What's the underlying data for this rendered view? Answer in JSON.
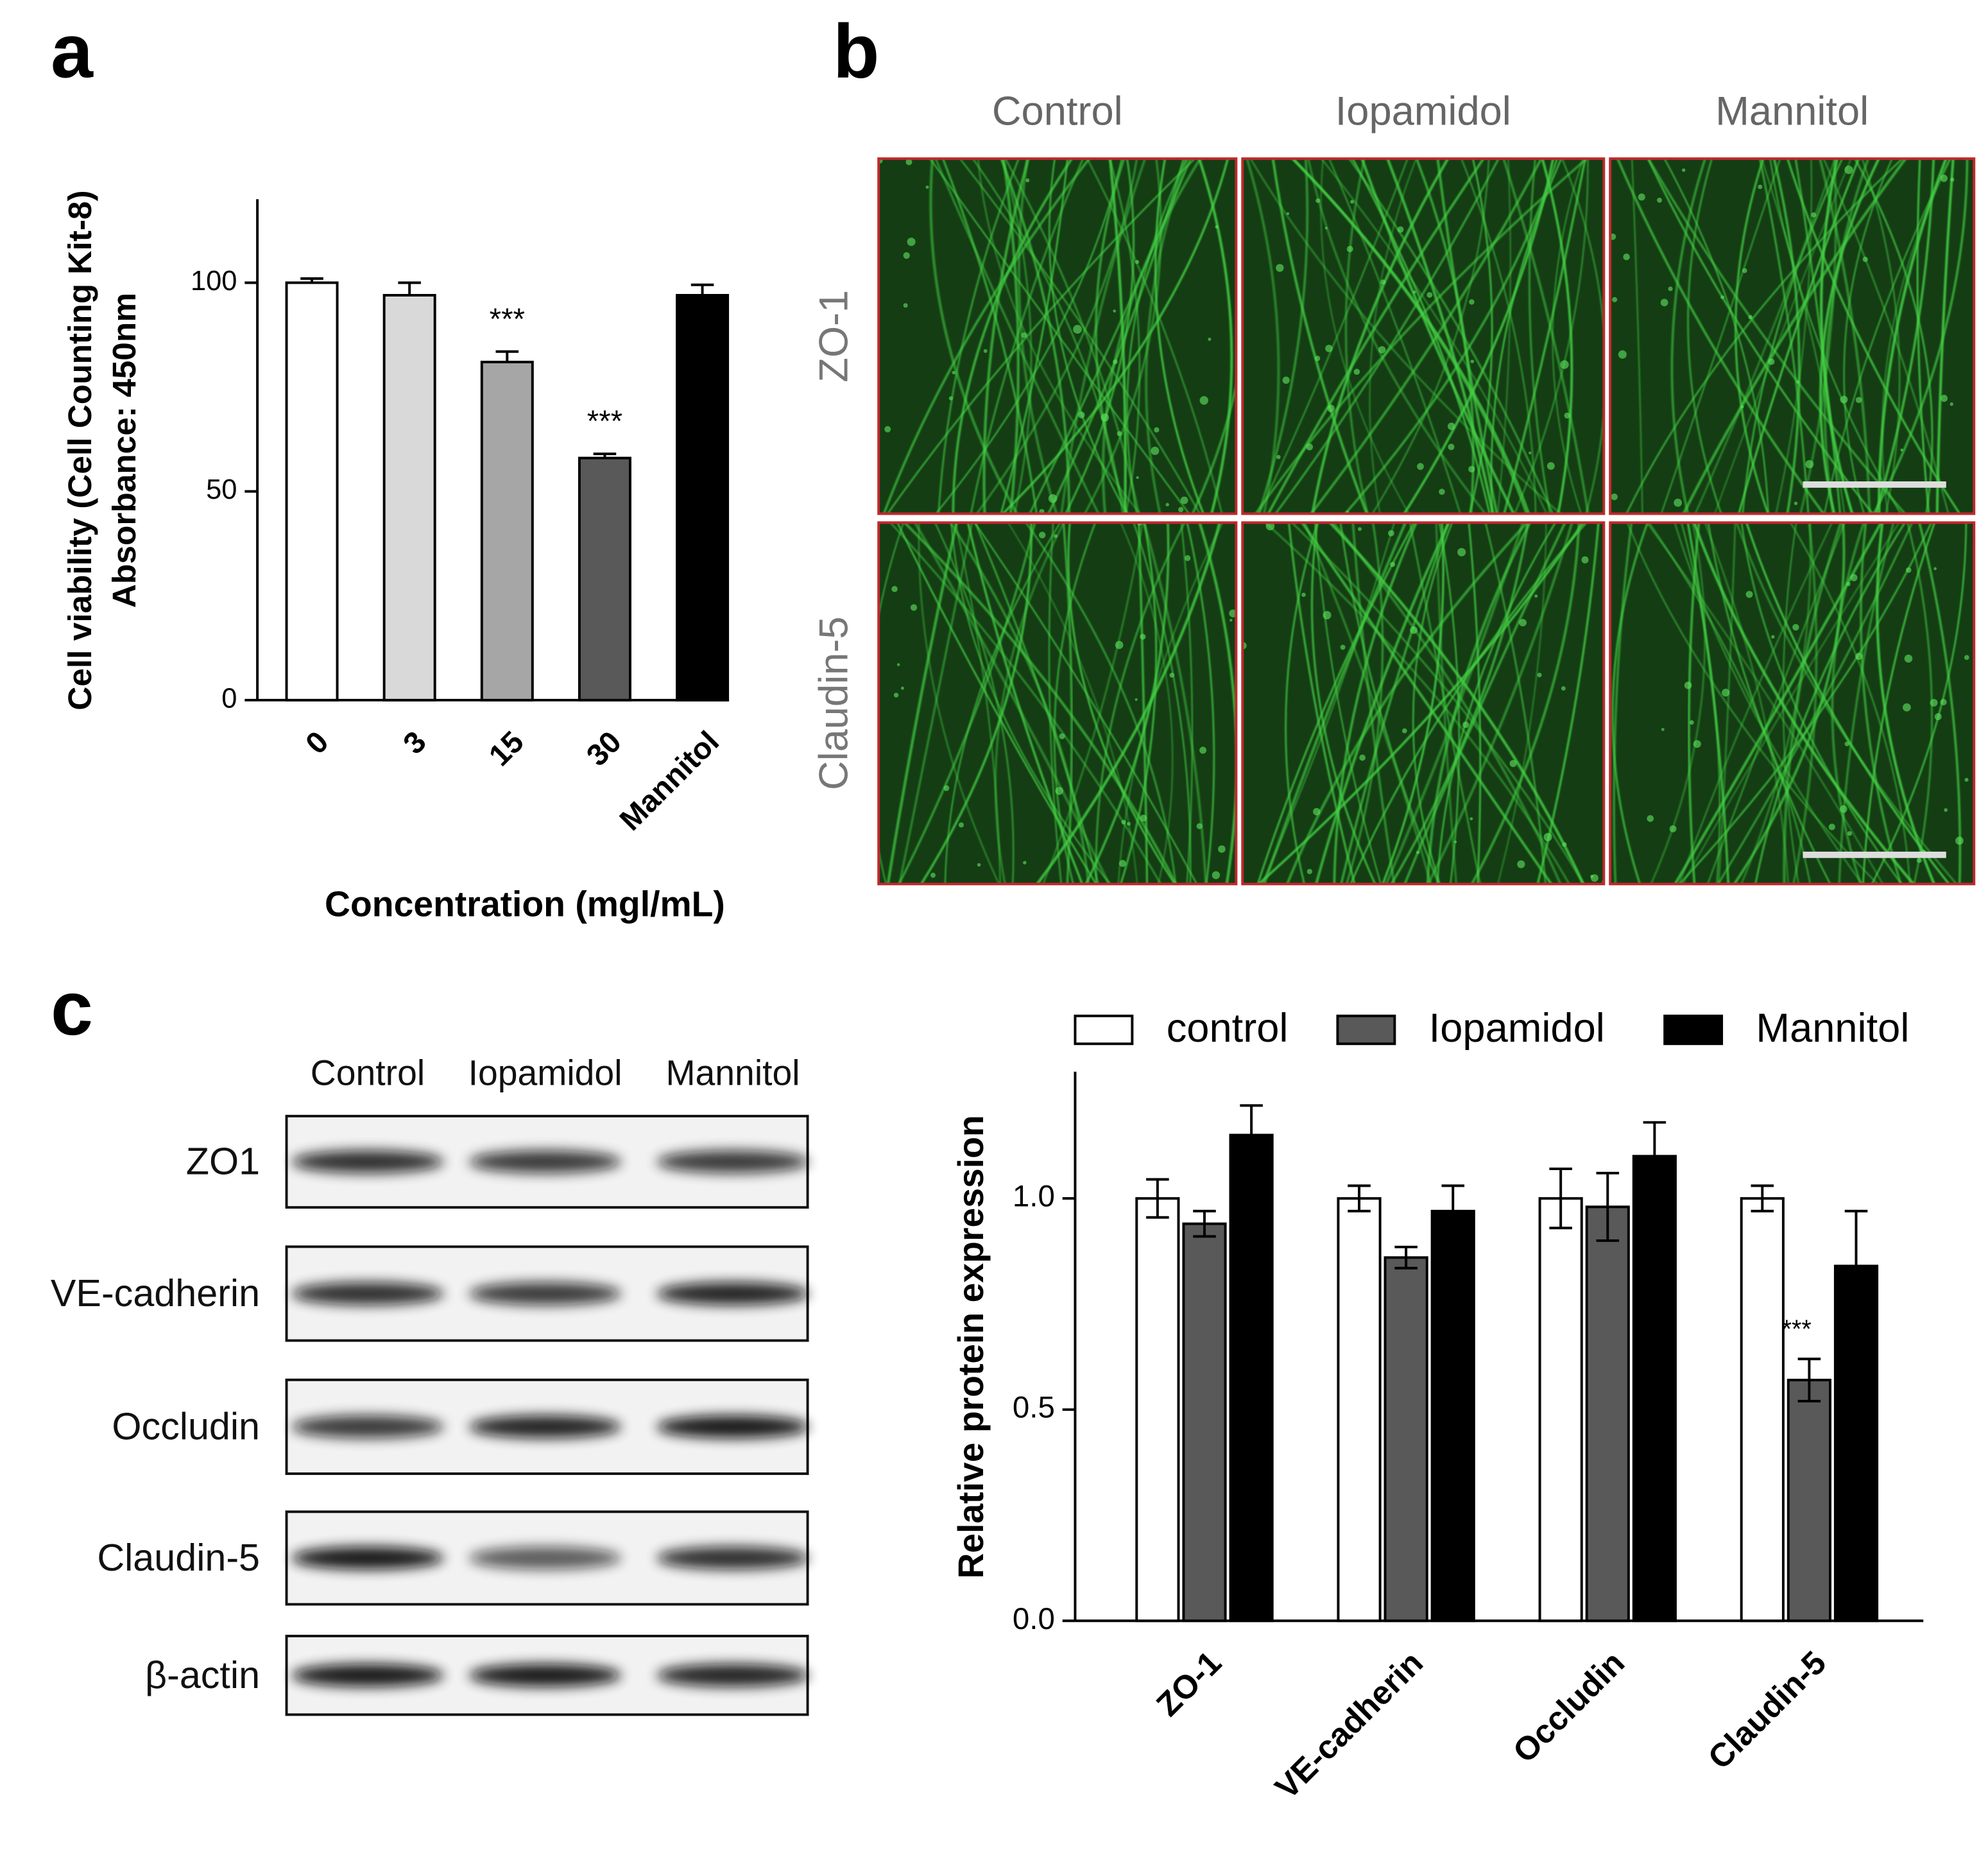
{
  "panel_labels": [
    "a",
    "b",
    "c"
  ],
  "chart_data": [
    {
      "type": "bar",
      "ylabel": [
        "Cell viability (Cell Counting Kit-8)",
        "Absorbance: 450nm"
      ],
      "xlabel": "Concentration (mgl/mL)",
      "categories": [
        "0",
        "3",
        "15",
        "30",
        "Mannitol"
      ],
      "values": [
        100,
        97,
        81,
        58,
        97
      ],
      "errors": [
        1,
        3,
        2.5,
        1,
        2.5
      ],
      "error_bars": "upper",
      "colors": [
        "#ffffff",
        "#d9d9d9",
        "#a6a6a6",
        "#595959",
        "#000000"
      ],
      "annotations": [
        null,
        null,
        "***",
        "***",
        null
      ],
      "ylim": [
        0,
        120
      ],
      "yticks": [
        0,
        50,
        100
      ]
    },
    {
      "type": "bar",
      "ylabel": "Relative protein expression",
      "categories": [
        "ZO-1",
        "VE-cadherin",
        "Occludin",
        "Claudin-5"
      ],
      "series": [
        {
          "name": "control",
          "color": "#ffffff",
          "values": [
            1.0,
            1.0,
            1.0,
            1.0
          ],
          "errors": [
            0.045,
            0.03,
            0.07,
            0.03
          ]
        },
        {
          "name": "Iopamidol",
          "color": "#595959",
          "values": [
            0.94,
            0.86,
            0.98,
            0.57
          ],
          "errors": [
            0.03,
            0.025,
            0.08,
            0.05
          ],
          "annotations": [
            null,
            null,
            null,
            "***"
          ]
        },
        {
          "name": "Mannitol",
          "color": "#000000",
          "values": [
            1.15,
            0.97,
            1.1,
            0.84
          ],
          "errors": [
            0.07,
            0.06,
            0.08,
            0.13
          ]
        }
      ],
      "error_bars": "both",
      "legend": "top",
      "ylim": [
        0,
        1.3
      ],
      "yticks": [
        {
          "value": 0,
          "label": "0.0"
        },
        {
          "value": 0.5,
          "label": "0.5"
        },
        {
          "value": 1,
          "label": "1.0"
        }
      ]
    }
  ],
  "microscopy": {
    "columns": [
      "Control",
      "Iopamidol",
      "Mannitol"
    ],
    "rows": [
      "ZO-1",
      "Claudin-5"
    ]
  },
  "western_blot": {
    "columns": [
      "Control",
      "Iopamidol",
      "Mannitol"
    ],
    "rows": [
      "ZO1",
      "VE-cadherin",
      "Occludin",
      "Claudin-5",
      "β-actin"
    ]
  }
}
